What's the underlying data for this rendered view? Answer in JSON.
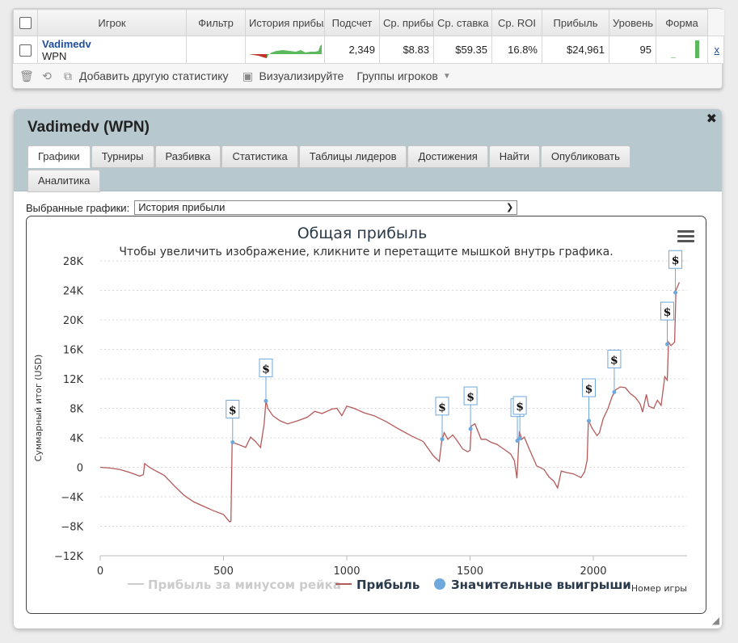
{
  "stats_table": {
    "headers": [
      "Игрок",
      "Фильтр",
      "История прибыли",
      "Подсчет",
      "Ср. прибыль",
      "Ср. ставка",
      "Ср. ROI",
      "Прибыль",
      "Уровень",
      "Форма"
    ],
    "row": {
      "player_name": "Vadimedv",
      "site": "WPN",
      "count": "2,349",
      "avg_profit": "$8.83",
      "avg_stake": "$59.35",
      "avg_roi": "16.8%",
      "profit": "$24,961",
      "level": "95",
      "remove_label": "x"
    }
  },
  "toolbar": {
    "add_stat": "Добавить другую статистику",
    "visualize": "Визуализируйте",
    "groups": "Группы игроков"
  },
  "panel": {
    "title": "Vadimedv (WPN)",
    "tabs": [
      "Графики",
      "Турниры",
      "Разбивка",
      "Статистика",
      "Таблицы лидеров",
      "Достижения",
      "Найти",
      "Опубликовать",
      "Аналитика"
    ],
    "active_tab": "Графики",
    "selector_label": "Выбранные графики:",
    "selector_value": "История прибыли"
  },
  "colors": {
    "profit_line": "#b55a5a",
    "rake_line": "#cccccc",
    "marker": "#6fa8dc",
    "sparkline_up": "#5cb85c",
    "sparkline_down": "#c9302c"
  },
  "chart_data": {
    "type": "line",
    "title": "Общая прибыль",
    "subtitle": "Чтобы увеличить изображение, кликните и перетащите мышкой внутрь графика.",
    "ylabel": "Суммарный итог (USD)",
    "xlabel": "Номер игры",
    "ylim": [
      -12000,
      28000
    ],
    "xlim": [
      0,
      2349
    ],
    "y_ticks": [
      "28K",
      "24K",
      "20K",
      "16K",
      "12K",
      "8K",
      "4K",
      "0",
      "−4K",
      "−8K",
      "−12K"
    ],
    "x_ticks": [
      "0",
      "500",
      "1000",
      "1500",
      "2000"
    ],
    "grid": true,
    "legend": [
      "Прибыль за минусом рейка",
      "Прибыль",
      "Значительные выигрыши"
    ],
    "legend_placement": "bottom",
    "flag_label": "$",
    "series": [
      {
        "name": "Прибыль",
        "points": [
          [
            0,
            0
          ],
          [
            40,
            -100
          ],
          [
            80,
            -300
          ],
          [
            120,
            -700
          ],
          [
            160,
            -1200
          ],
          [
            175,
            -1000
          ],
          [
            180,
            500
          ],
          [
            200,
            0
          ],
          [
            220,
            -400
          ],
          [
            260,
            -1100
          ],
          [
            300,
            -2500
          ],
          [
            340,
            -3800
          ],
          [
            380,
            -4700
          ],
          [
            420,
            -5300
          ],
          [
            460,
            -5900
          ],
          [
            500,
            -6400
          ],
          [
            525,
            -7400
          ],
          [
            530,
            -7300
          ],
          [
            535,
            3400
          ],
          [
            560,
            3100
          ],
          [
            590,
            2700
          ],
          [
            610,
            4100
          ],
          [
            630,
            3500
          ],
          [
            650,
            2700
          ],
          [
            665,
            5900
          ],
          [
            672,
            9000
          ],
          [
            680,
            8000
          ],
          [
            700,
            7000
          ],
          [
            730,
            6300
          ],
          [
            760,
            5900
          ],
          [
            800,
            6300
          ],
          [
            840,
            6800
          ],
          [
            870,
            7600
          ],
          [
            900,
            7300
          ],
          [
            940,
            7900
          ],
          [
            960,
            8000
          ],
          [
            980,
            7000
          ],
          [
            1000,
            8300
          ],
          [
            1030,
            8000
          ],
          [
            1070,
            7400
          ],
          [
            1110,
            7000
          ],
          [
            1160,
            6200
          ],
          [
            1210,
            5200
          ],
          [
            1260,
            4300
          ],
          [
            1310,
            3500
          ],
          [
            1350,
            1600
          ],
          [
            1375,
            800
          ],
          [
            1385,
            3500
          ],
          [
            1395,
            4700
          ],
          [
            1410,
            3800
          ],
          [
            1430,
            4400
          ],
          [
            1450,
            3500
          ],
          [
            1470,
            2500
          ],
          [
            1490,
            2100
          ],
          [
            1500,
            2300
          ],
          [
            1505,
            5600
          ],
          [
            1520,
            5900
          ],
          [
            1545,
            3800
          ],
          [
            1565,
            3800
          ],
          [
            1585,
            3400
          ],
          [
            1610,
            3100
          ],
          [
            1640,
            2400
          ],
          [
            1665,
            1800
          ],
          [
            1680,
            900
          ],
          [
            1690,
            -1500
          ],
          [
            1700,
            4900
          ],
          [
            1710,
            3800
          ],
          [
            1720,
            4100
          ],
          [
            1740,
            2500
          ],
          [
            1770,
            200
          ],
          [
            1800,
            -300
          ],
          [
            1820,
            -1300
          ],
          [
            1840,
            -1900
          ],
          [
            1855,
            -2800
          ],
          [
            1870,
            -500
          ],
          [
            1890,
            -700
          ],
          [
            1920,
            -900
          ],
          [
            1950,
            -1400
          ],
          [
            1965,
            -600
          ],
          [
            1975,
            1000
          ],
          [
            1980,
            6400
          ],
          [
            1995,
            5300
          ],
          [
            2015,
            4300
          ],
          [
            2025,
            4700
          ],
          [
            2040,
            6600
          ],
          [
            2060,
            8000
          ],
          [
            2075,
            9500
          ],
          [
            2090,
            10500
          ],
          [
            2110,
            10900
          ],
          [
            2130,
            10800
          ],
          [
            2150,
            10000
          ],
          [
            2170,
            9500
          ],
          [
            2190,
            8600
          ],
          [
            2200,
            7500
          ],
          [
            2215,
            9900
          ],
          [
            2225,
            8300
          ],
          [
            2245,
            8000
          ],
          [
            2260,
            9100
          ],
          [
            2275,
            8400
          ],
          [
            2290,
            12300
          ],
          [
            2300,
            11800
          ],
          [
            2305,
            17000
          ],
          [
            2315,
            16500
          ],
          [
            2330,
            17000
          ],
          [
            2335,
            24000
          ],
          [
            2349,
            25100
          ]
        ]
      },
      {
        "name": "Значительные выигрыши",
        "points": [
          [
            537,
            3400
          ],
          [
            672,
            9000
          ],
          [
            1387,
            3800
          ],
          [
            1502,
            5200
          ],
          [
            1692,
            3600
          ],
          [
            1702,
            3900
          ],
          [
            1982,
            6300
          ],
          [
            2085,
            10200
          ],
          [
            2300,
            16700
          ],
          [
            2333,
            23700
          ]
        ]
      }
    ]
  }
}
